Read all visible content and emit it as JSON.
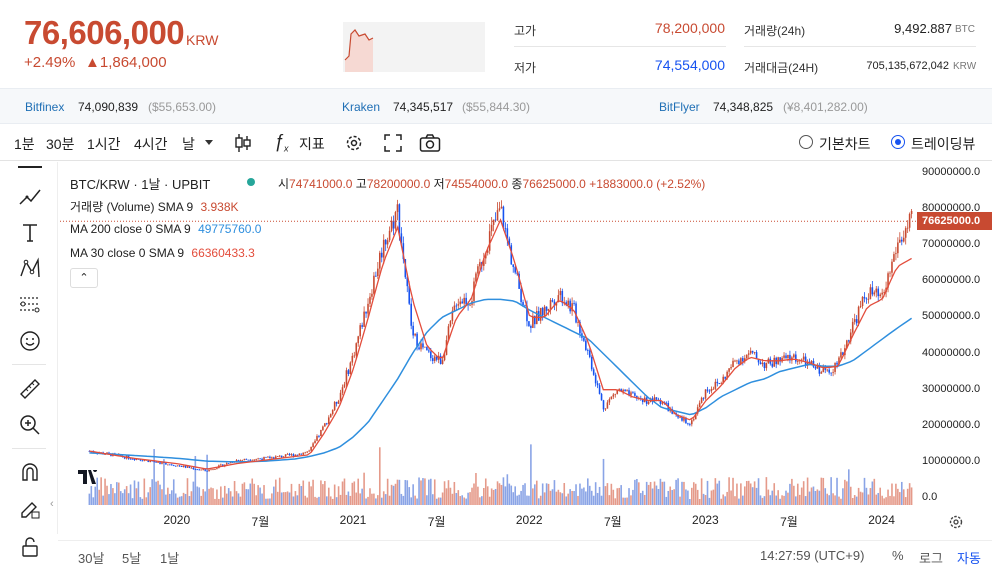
{
  "header": {
    "price": "76,606,000",
    "price_unit": "KRW",
    "change_pct": "+2.49%",
    "change_amt": "▲1,864,000",
    "high_label": "고가",
    "high_value": "78,200,000",
    "low_label": "저가",
    "low_value": "74,554,000",
    "vol_label": "거래량(24h)",
    "vol_value": "9,492.887",
    "vol_unit": "BTC",
    "amt_label": "거래대금(24H)",
    "amt_value": "705,135,672,042",
    "amt_unit": "KRW"
  },
  "exchanges": [
    {
      "name": "Bitfinex",
      "value": "74,090,839",
      "usd": "($55,653.00)"
    },
    {
      "name": "Kraken",
      "value": "74,345,517",
      "usd": "($55,844.30)"
    },
    {
      "name": "BitFlyer",
      "value": "74,348,825",
      "usd": "(¥8,401,282.00)"
    }
  ],
  "toolbar": {
    "intervals": [
      "1분",
      "30분",
      "1시간",
      "4시간",
      "날"
    ],
    "indicator_label": "지표",
    "basic_chart": "기본차트",
    "trading_view": "트레이딩뷰"
  },
  "legend": {
    "symbol": "BTC/KRW · 1날 · UPBIT",
    "o_label": "시",
    "o": "74741000.0",
    "h_label": "고",
    "h": "78200000.0",
    "l_label": "저",
    "l": "74554000.0",
    "c_label": "종",
    "c": "76625000.0",
    "change": "+1883000.0 (+2.52%)",
    "volume_label": "거래량 (Volume) SMA 9",
    "volume_value": "3.938K",
    "ma200_label": "MA 200 close 0 SMA 9",
    "ma200_value": "49775760.0",
    "ma30_label": "MA 30 close 0 SMA 9",
    "ma30_value": "66360433.3",
    "last_price_tag": "76625000.0"
  },
  "colors": {
    "up": "#c84a31",
    "down": "#1652f0",
    "ma200": "#2f8fde",
    "ma30": "#e34d3c"
  },
  "chart_data": {
    "type": "line",
    "title": "BTC/KRW · 1날 · UPBIT",
    "yticks": [
      "90000000.0",
      "80000000.0",
      "70000000.0",
      "60000000.0",
      "50000000.0",
      "40000000.0",
      "30000000.0",
      "20000000.0",
      "10000000.0",
      "0.0"
    ],
    "xticks": [
      "2020",
      "7월",
      "2021",
      "7월",
      "2022",
      "7월",
      "2023",
      "7월",
      "2024"
    ],
    "ylim": [
      0,
      90000000
    ],
    "x": [
      "2019-07",
      "2019-10",
      "2020-01",
      "2020-03",
      "2020-05",
      "2020-07",
      "2020-09",
      "2020-10",
      "2020-11",
      "2020-12",
      "2021-01",
      "2021-02",
      "2021-03",
      "2021-04",
      "2021-05",
      "2021-06",
      "2021-07",
      "2021-08",
      "2021-09",
      "2021-10",
      "2021-11",
      "2021-12",
      "2022-01",
      "2022-02",
      "2022-03",
      "2022-04",
      "2022-05",
      "2022-06",
      "2022-07",
      "2022-08",
      "2022-09",
      "2022-10",
      "2022-11",
      "2022-12",
      "2023-01",
      "2023-02",
      "2023-03",
      "2023-04",
      "2023-05",
      "2023-06",
      "2023-07",
      "2023-08",
      "2023-09",
      "2023-10",
      "2023-11",
      "2023-12",
      "2024-01",
      "2024-02",
      "2024-03"
    ],
    "series": [
      {
        "name": "price",
        "values": [
          13000000,
          11000000,
          9000000,
          7500000,
          10500000,
          11000000,
          12000000,
          13000000,
          20000000,
          28000000,
          40000000,
          55000000,
          70000000,
          80000000,
          45000000,
          40000000,
          38000000,
          55000000,
          55000000,
          70000000,
          80000000,
          62000000,
          48000000,
          52000000,
          57000000,
          52000000,
          40000000,
          25000000,
          30000000,
          28000000,
          27000000,
          27000000,
          22000000,
          21000000,
          30000000,
          32000000,
          38000000,
          40000000,
          37000000,
          38000000,
          39000000,
          37000000,
          35000000,
          37000000,
          48000000,
          57000000,
          55000000,
          70000000,
          76625000
        ]
      },
      {
        "name": "MA 200 close 0 SMA 9",
        "values": [
          12500000,
          11800000,
          11000000,
          10200000,
          10000000,
          10200000,
          10800000,
          11500000,
          12500000,
          14000000,
          17000000,
          21000000,
          27000000,
          33000000,
          40000000,
          46000000,
          50000000,
          52000000,
          54000000,
          55000000,
          55000000,
          54500000,
          52000000,
          50000000,
          48000000,
          46000000,
          44000000,
          40000000,
          36000000,
          32000000,
          28000000,
          25000000,
          24000000,
          23000000,
          25000000,
          28000000,
          30000000,
          32000000,
          33000000,
          35000000,
          36000000,
          37000000,
          36500000,
          36500000,
          38000000,
          41000000,
          44000000,
          47000000,
          49775760
        ]
      },
      {
        "name": "MA 30 close 0 SMA 9",
        "values": [
          13000000,
          11000000,
          9500000,
          8000000,
          9500000,
          10500000,
          11500000,
          12000000,
          18000000,
          25000000,
          36000000,
          50000000,
          65000000,
          75000000,
          55000000,
          42000000,
          38000000,
          50000000,
          55000000,
          68000000,
          77000000,
          65000000,
          50000000,
          50000000,
          55000000,
          52000000,
          43000000,
          30000000,
          30000000,
          28000000,
          27000000,
          27000000,
          23000000,
          21500000,
          27000000,
          31000000,
          36000000,
          39000000,
          38000000,
          38000000,
          38500000,
          37500000,
          36000000,
          36500000,
          45000000,
          53000000,
          55000000,
          64000000,
          66360433
        ]
      }
    ],
    "volume_max_k": 9.0
  },
  "bottom": {
    "ranges": [
      "30날",
      "5날",
      "1날"
    ],
    "time": "14:27:59 (UTC+9)",
    "pct": "%",
    "log": "로그",
    "auto": "자동"
  }
}
